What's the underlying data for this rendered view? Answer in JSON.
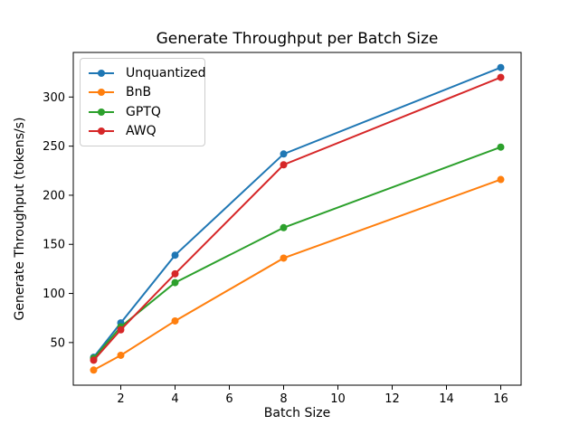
{
  "title": "Generate Throughput per Batch Size",
  "chart_data": {
    "type": "line",
    "title": "Generate Throughput per Batch Size",
    "xlabel": "Batch Size",
    "ylabel": "Generate Throughput (tokens/s)",
    "x": [
      1,
      2,
      4,
      8,
      16
    ],
    "series": [
      {
        "name": "Unquantized",
        "color": "#1f77b4",
        "values": [
          35,
          70,
          139,
          242,
          330
        ]
      },
      {
        "name": "BnB",
        "color": "#ff7f0e",
        "values": [
          22,
          37,
          72,
          136,
          216
        ]
      },
      {
        "name": "GPTQ",
        "color": "#2ca02c",
        "values": [
          34,
          66,
          111,
          167,
          249
        ]
      },
      {
        "name": "AWQ",
        "color": "#d62728",
        "values": [
          32,
          63,
          120,
          231,
          320
        ]
      }
    ],
    "xticks": [
      2,
      4,
      6,
      8,
      10,
      12,
      14,
      16
    ],
    "yticks": [
      50,
      100,
      150,
      200,
      250,
      300
    ],
    "xlim": [
      0.25,
      16.75
    ],
    "ylim": [
      6.6,
      345.4
    ],
    "grid": false,
    "legend_position": "upper left",
    "marker": "circle",
    "axis_color": "#000000",
    "background_color": "#ffffff"
  }
}
